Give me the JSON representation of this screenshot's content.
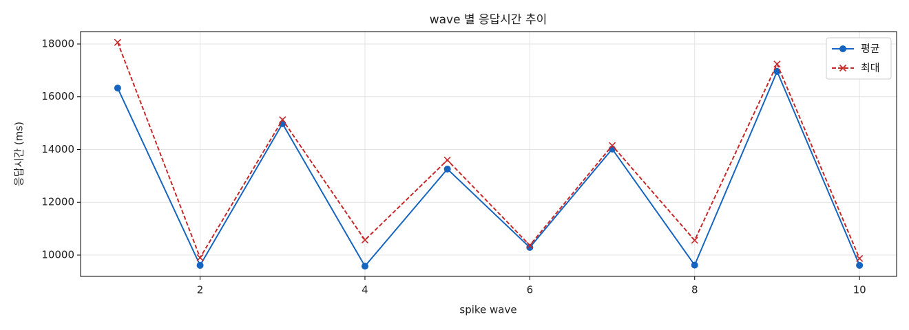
{
  "chart_data": {
    "type": "line",
    "title": "wave 별 응답시간 추이",
    "xlabel": "spike wave",
    "ylabel": "응답시간 (ms)",
    "x": [
      1,
      2,
      3,
      4,
      5,
      6,
      7,
      8,
      9,
      10
    ],
    "series": [
      {
        "name": "평균",
        "color": "#1565c0",
        "marker": "o",
        "linestyle": "solid",
        "values": [
          16330,
          9610,
          14980,
          9580,
          13260,
          10290,
          14020,
          9620,
          16960,
          9610
        ]
      },
      {
        "name": "최대",
        "color": "#c62828",
        "marker": "x",
        "linestyle": "dashed",
        "values": [
          18060,
          9900,
          15130,
          10570,
          13600,
          10370,
          14150,
          10560,
          17240,
          9870
        ]
      }
    ],
    "xlim": [
      0.55,
      10.45
    ],
    "xticks": [
      2,
      4,
      6,
      8,
      10
    ],
    "ylim": [
      9192,
      18469
    ],
    "yticks": [
      10000,
      12000,
      14000,
      16000,
      18000
    ],
    "grid": true,
    "legend": "upper right"
  }
}
